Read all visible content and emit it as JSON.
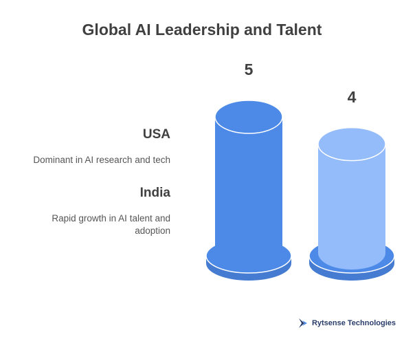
{
  "chart_data": {
    "type": "bar",
    "title": "Global AI Leadership and Talent",
    "categories": [
      "USA",
      "India"
    ],
    "descriptions": [
      "Dominant in AI research and tech",
      "Rapid growth in AI talent and adoption"
    ],
    "values": [
      5,
      4
    ],
    "value_labels": [
      "5",
      "4"
    ],
    "ylim": [
      0,
      5
    ],
    "colors": [
      "#4d8ae8",
      "#94bcfa"
    ],
    "base_colors": [
      "#4d8ae8",
      "#4d8ae8"
    ],
    "grid": false,
    "legend": "none"
  },
  "footer": {
    "brand": "Rytsense Technologies",
    "icon": "rytsense-logo-icon"
  }
}
